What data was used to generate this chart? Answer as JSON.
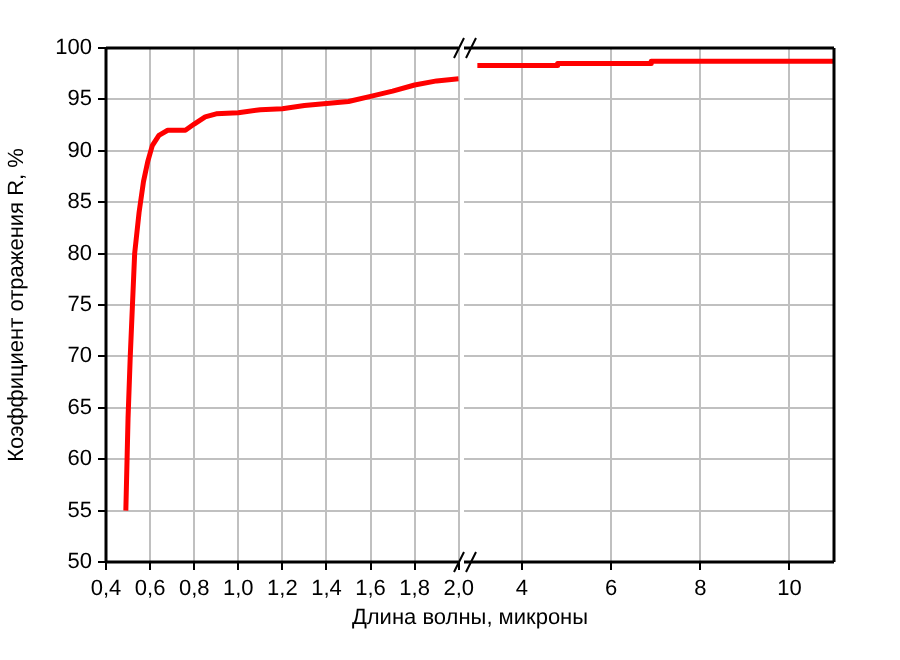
{
  "chart_data": [
    {
      "type": "line",
      "ylabel": "Коэффициент отражения R, %",
      "xlabel": "Длина волны, микроны",
      "grid": true,
      "marker": "none",
      "line_style": "solid",
      "xlim": [
        0.4,
        2.0
      ],
      "xticks": [
        {
          "value": 0.4,
          "label": "0,4"
        },
        {
          "value": 0.6,
          "label": "0,6"
        },
        {
          "value": 0.8,
          "label": "0,8"
        },
        {
          "value": 1.0,
          "label": "1,0"
        },
        {
          "value": 1.2,
          "label": "1,2"
        },
        {
          "value": 1.4,
          "label": "1,4"
        },
        {
          "value": 1.6,
          "label": "1,6"
        },
        {
          "value": 1.8,
          "label": "1,8"
        },
        {
          "value": 2.0,
          "label": "2,0"
        }
      ],
      "ylim": [
        50,
        100
      ],
      "yticks": [
        50,
        55,
        60,
        65,
        70,
        75,
        80,
        85,
        90,
        95,
        100
      ],
      "series": [
        {
          "color": "#ff0000",
          "x": [
            0.49,
            0.5,
            0.51,
            0.52,
            0.53,
            0.55,
            0.57,
            0.59,
            0.61,
            0.64,
            0.68,
            0.76,
            0.8,
            0.85,
            0.9,
            1.0,
            1.1,
            1.2,
            1.3,
            1.4,
            1.5,
            1.6,
            1.7,
            1.8,
            1.9,
            2.0
          ],
          "values": [
            55,
            64,
            70,
            75,
            80,
            84,
            87,
            89,
            90.5,
            91.5,
            92,
            92,
            92.6,
            93.3,
            93.6,
            93.7,
            94,
            94.1,
            94.4,
            94.6,
            94.8,
            95.3,
            95.8,
            96.4,
            96.8,
            97
          ]
        }
      ]
    },
    {
      "type": "line",
      "grid": true,
      "marker": "none",
      "line_style": "solid",
      "tick_labels": "x",
      "xlim": [
        2.7,
        11
      ],
      "xticks": [
        4,
        6,
        8,
        10
      ],
      "ylim": [
        50,
        100
      ],
      "yticks": [
        50,
        55,
        60,
        65,
        70,
        75,
        80,
        85,
        90,
        95,
        100
      ],
      "series": [
        {
          "color": "#ff0000",
          "x": [
            3.0,
            4.8,
            4.8,
            6.9,
            6.9,
            11
          ],
          "values": [
            98.3,
            98.3,
            98.5,
            98.5,
            98.7,
            98.7
          ]
        }
      ]
    }
  ]
}
